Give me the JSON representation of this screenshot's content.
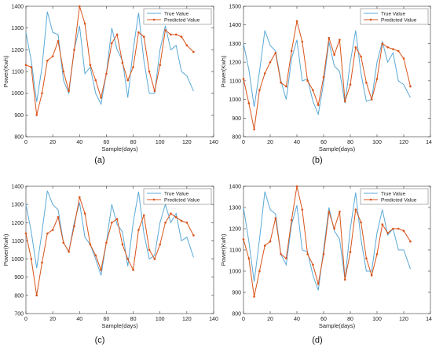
{
  "legend": {
    "true_label": "True Value",
    "pred_label": "Predicted Value"
  },
  "colors": {
    "true": "#5aa9d6",
    "pred": "#d95319",
    "axis": "#333333",
    "label": "#222222"
  },
  "chart_data": [
    {
      "caption": "(a)",
      "type": "line",
      "xlabel": "Sample(days)",
      "ylabel": "Power(Kwh)",
      "xlim": [
        0,
        140
      ],
      "ylim": [
        800,
        1400
      ],
      "xticks": [
        0,
        20,
        40,
        60,
        80,
        100,
        120,
        140
      ],
      "yticks": [
        800,
        900,
        1000,
        1100,
        1200,
        1300,
        1400
      ],
      "legend_position": "top-right",
      "series": [
        {
          "name": "True Value",
          "x": [
            0,
            4,
            8,
            12,
            16,
            20,
            24,
            28,
            32,
            36,
            40,
            44,
            48,
            52,
            56,
            60,
            64,
            68,
            72,
            76,
            80,
            84,
            88,
            92,
            96,
            100,
            104,
            108,
            112,
            116,
            120,
            125
          ],
          "y": [
            1280,
            1150,
            960,
            1120,
            1375,
            1280,
            1270,
            1060,
            1000,
            1200,
            1310,
            1090,
            1120,
            1000,
            950,
            1090,
            1300,
            1200,
            1150,
            980,
            1200,
            1370,
            1150,
            1000,
            1000,
            1200,
            1310,
            1200,
            1220,
            1100,
            1080,
            1010
          ]
        },
        {
          "name": "Predicted Value",
          "x": [
            0,
            4,
            8,
            12,
            16,
            20,
            24,
            28,
            32,
            36,
            40,
            44,
            48,
            52,
            56,
            60,
            64,
            68,
            72,
            76,
            80,
            84,
            88,
            92,
            96,
            100,
            104,
            108,
            112,
            116,
            120,
            125
          ],
          "y": [
            1130,
            1120,
            900,
            1000,
            1150,
            1170,
            1240,
            1100,
            1010,
            1200,
            1400,
            1320,
            1130,
            1060,
            980,
            1090,
            1230,
            1270,
            1140,
            1060,
            1120,
            1280,
            1260,
            1100,
            1010,
            1130,
            1290,
            1270,
            1270,
            1260,
            1220,
            1190
          ]
        }
      ]
    },
    {
      "caption": "(b)",
      "type": "line",
      "xlabel": "Sample(days)",
      "ylabel": "Power(Kwh)",
      "xlim": [
        0,
        140
      ],
      "ylim": [
        800,
        1500
      ],
      "xticks": [
        0,
        20,
        40,
        60,
        80,
        100,
        120,
        140
      ],
      "yticks": [
        800,
        900,
        1000,
        1100,
        1200,
        1300,
        1400,
        1500
      ],
      "legend_position": "top-right",
      "series": [
        {
          "name": "True Value",
          "x": [
            0,
            4,
            8,
            12,
            16,
            20,
            24,
            28,
            32,
            36,
            40,
            44,
            48,
            52,
            56,
            60,
            64,
            68,
            72,
            76,
            80,
            84,
            88,
            92,
            96,
            100,
            104,
            108,
            112,
            116,
            120,
            125
          ],
          "y": [
            1300,
            1160,
            960,
            1150,
            1370,
            1290,
            1260,
            1100,
            1000,
            1220,
            1320,
            1100,
            1110,
            990,
            920,
            1090,
            1310,
            1180,
            1150,
            980,
            1200,
            1370,
            1140,
            990,
            1000,
            1200,
            1310,
            1200,
            1250,
            1100,
            1080,
            1010
          ]
        },
        {
          "name": "Predicted Value",
          "x": [
            0,
            4,
            8,
            12,
            16,
            20,
            24,
            28,
            32,
            36,
            40,
            44,
            48,
            52,
            56,
            60,
            64,
            68,
            72,
            76,
            80,
            84,
            88,
            92,
            96,
            100,
            104,
            108,
            112,
            116,
            120,
            125
          ],
          "y": [
            1110,
            980,
            840,
            1050,
            1140,
            1200,
            1250,
            1090,
            1070,
            1260,
            1420,
            1310,
            1100,
            1050,
            970,
            1120,
            1330,
            1240,
            1320,
            990,
            1080,
            1280,
            1230,
            1090,
            1000,
            1110,
            1300,
            1280,
            1270,
            1260,
            1220,
            1070
          ]
        }
      ]
    },
    {
      "caption": "(c)",
      "type": "line",
      "xlabel": "Sample(days)",
      "ylabel": "Power(Kwh)",
      "xlim": [
        0,
        140
      ],
      "ylim": [
        700,
        1400
      ],
      "xticks": [
        0,
        20,
        40,
        60,
        80,
        100,
        120,
        140
      ],
      "yticks": [
        700,
        800,
        900,
        1000,
        1100,
        1200,
        1300,
        1400
      ],
      "legend_position": "top-right",
      "series": [
        {
          "name": "True Value",
          "x": [
            0,
            4,
            8,
            12,
            16,
            20,
            24,
            28,
            32,
            36,
            40,
            44,
            48,
            52,
            56,
            60,
            64,
            68,
            72,
            76,
            80,
            84,
            88,
            92,
            96,
            100,
            104,
            108,
            112,
            116,
            120,
            125
          ],
          "y": [
            1300,
            1150,
            950,
            1150,
            1375,
            1300,
            1270,
            1090,
            1040,
            1200,
            1310,
            1120,
            1080,
            1000,
            910,
            1090,
            1300,
            1190,
            1150,
            960,
            1200,
            1370,
            1140,
            1000,
            1020,
            1200,
            1300,
            1200,
            1250,
            1100,
            1120,
            1010
          ]
        },
        {
          "name": "Predicted Value",
          "x": [
            0,
            4,
            8,
            12,
            16,
            20,
            24,
            28,
            32,
            36,
            40,
            44,
            48,
            52,
            56,
            60,
            64,
            68,
            72,
            76,
            80,
            84,
            88,
            92,
            96,
            100,
            104,
            108,
            112,
            116,
            120,
            125
          ],
          "y": [
            1140,
            1000,
            800,
            980,
            1140,
            1160,
            1230,
            1090,
            1040,
            1180,
            1340,
            1250,
            1080,
            1020,
            940,
            1090,
            1200,
            1220,
            1080,
            1000,
            940,
            1160,
            1240,
            1050,
            1000,
            1080,
            1200,
            1250,
            1230,
            1210,
            1200,
            1130
          ]
        }
      ]
    },
    {
      "caption": "(d)",
      "type": "line",
      "xlabel": "Sample(days)",
      "ylabel": "Power(Kwh)",
      "xlim": [
        0,
        140
      ],
      "ylim": [
        800,
        1400
      ],
      "xticks": [
        0,
        20,
        40,
        60,
        80,
        100,
        120,
        140
      ],
      "yticks": [
        800,
        900,
        1000,
        1100,
        1200,
        1300,
        1400
      ],
      "legend_position": "top-right",
      "series": [
        {
          "name": "True Value",
          "x": [
            0,
            4,
            8,
            12,
            16,
            20,
            24,
            28,
            32,
            36,
            40,
            44,
            48,
            52,
            56,
            60,
            64,
            68,
            72,
            76,
            80,
            84,
            88,
            92,
            96,
            100,
            104,
            108,
            112,
            116,
            120,
            125
          ],
          "y": [
            1300,
            1140,
            950,
            1150,
            1375,
            1290,
            1270,
            1080,
            1030,
            1220,
            1310,
            1100,
            1090,
            980,
            910,
            1100,
            1300,
            1190,
            1150,
            960,
            1200,
            1370,
            1150,
            1000,
            1000,
            1180,
            1290,
            1170,
            1200,
            1100,
            1100,
            1010
          ]
        },
        {
          "name": "Predicted Value",
          "x": [
            0,
            4,
            8,
            12,
            16,
            20,
            24,
            28,
            32,
            36,
            40,
            44,
            48,
            52,
            56,
            60,
            64,
            68,
            72,
            76,
            80,
            84,
            88,
            92,
            96,
            100,
            104,
            108,
            112,
            116,
            120,
            125
          ],
          "y": [
            1150,
            1060,
            880,
            1000,
            1120,
            1140,
            1250,
            1080,
            1060,
            1240,
            1400,
            1290,
            1080,
            1030,
            940,
            1080,
            1280,
            1200,
            1280,
            960,
            1090,
            1290,
            1230,
            1060,
            980,
            1080,
            1220,
            1180,
            1200,
            1200,
            1190,
            1140
          ]
        }
      ]
    }
  ]
}
